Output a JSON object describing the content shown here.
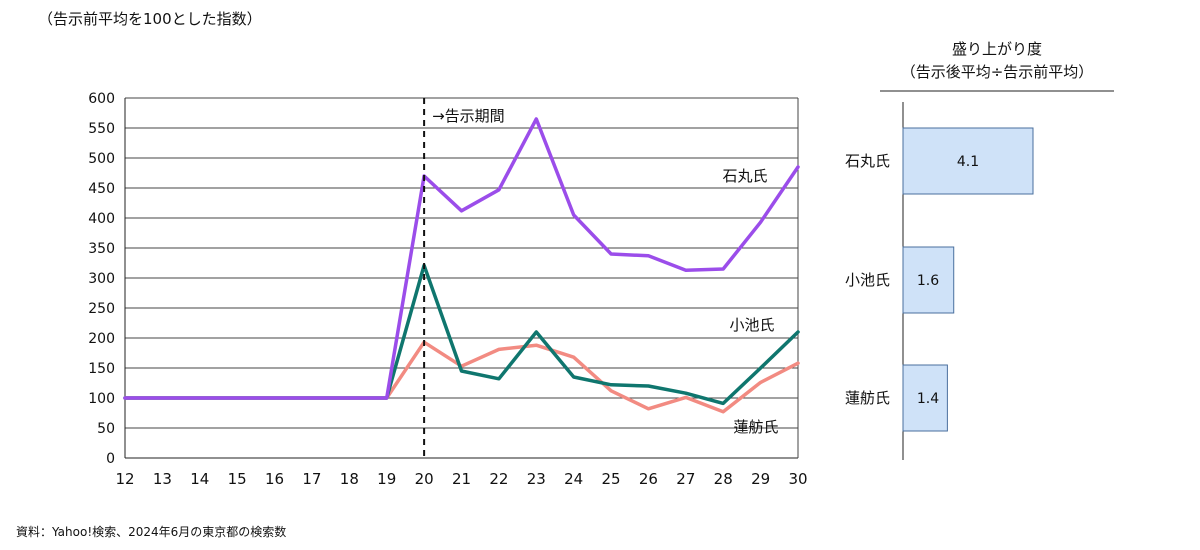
{
  "subtitle": "（告示前平均を100とした指数）",
  "source": "資料：Yahoo!検索、2024年6月の東京都の検索数",
  "chart_data": [
    {
      "type": "line",
      "x": [
        12,
        13,
        14,
        15,
        16,
        17,
        18,
        19,
        20,
        21,
        22,
        23,
        24,
        25,
        26,
        27,
        28,
        29,
        30
      ],
      "ylim": [
        0,
        600
      ],
      "yticks": [
        0,
        50,
        100,
        150,
        200,
        250,
        300,
        350,
        400,
        450,
        500,
        550,
        600
      ],
      "grid": true,
      "series": [
        {
          "name": "石丸氏",
          "color": "#9b4dea",
          "values": [
            100,
            100,
            100,
            100,
            100,
            100,
            100,
            100,
            470,
            412,
            447,
            565,
            405,
            340,
            337,
            313,
            315,
            393,
            485
          ]
        },
        {
          "name": "小池氏",
          "color": "#0f766e",
          "values": [
            100,
            100,
            100,
            100,
            100,
            100,
            100,
            100,
            321,
            145,
            132,
            210,
            135,
            122,
            120,
            108,
            91,
            150,
            210
          ]
        },
        {
          "name": "蓮舫氏",
          "color": "#f28b82",
          "values": [
            100,
            100,
            100,
            100,
            100,
            100,
            100,
            100,
            193,
            153,
            181,
            188,
            168,
            112,
            82,
            101,
            77,
            126,
            158
          ]
        }
      ],
      "annotations": [
        {
          "text": "→告示期間",
          "x": 20
        }
      ]
    },
    {
      "type": "bar",
      "orientation": "horizontal",
      "title": "盛り上がり度",
      "subtitle": "（告示後平均÷告示前平均）",
      "categories": [
        "石丸氏",
        "小池氏",
        "蓮舫氏"
      ],
      "values": [
        4.1,
        1.6,
        1.4
      ],
      "bar_color": "#cfe2f8",
      "bar_edge_color": "#4a6f9e"
    }
  ],
  "bar_chart": {
    "title": "盛り上がり度",
    "subtitle": "（告示後平均÷告示前平均）"
  }
}
